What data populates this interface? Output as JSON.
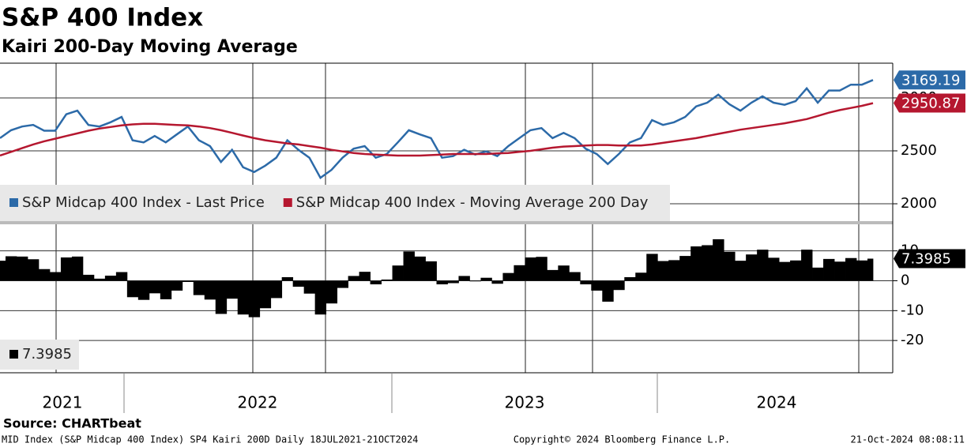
{
  "chart_data": [
    {
      "type": "line",
      "title": "S&P 400 Index",
      "subtitle": "Kairi 200-Day Moving Average",
      "ylim": [
        1836,
        3328
      ],
      "yticks": [
        2000,
        2500,
        3000
      ],
      "grid": true,
      "series": [
        {
          "name": "S&P Midcap 400 Index - Last Price",
          "color": "#2c6aa8",
          "values": [
            2620,
            2695,
            2730,
            2745,
            2690,
            2690,
            2845,
            2880,
            2745,
            2730,
            2770,
            2820,
            2600,
            2580,
            2640,
            2580,
            2655,
            2730,
            2600,
            2545,
            2395,
            2510,
            2345,
            2300,
            2360,
            2435,
            2600,
            2510,
            2435,
            2245,
            2320,
            2435,
            2520,
            2545,
            2435,
            2470,
            2580,
            2695,
            2655,
            2620,
            2435,
            2450,
            2510,
            2465,
            2495,
            2450,
            2545,
            2620,
            2695,
            2715,
            2620,
            2670,
            2620,
            2520,
            2470,
            2375,
            2470,
            2580,
            2620,
            2790,
            2745,
            2770,
            2820,
            2920,
            2955,
            3030,
            2940,
            2880,
            2955,
            3015,
            2955,
            2935,
            2970,
            3090,
            2955,
            3070,
            3070,
            3125,
            3125,
            3169.19
          ]
        },
        {
          "name": "S&P Midcap 400 Index - Moving Average 200 Day",
          "color": "#b5172f",
          "values": [
            2455,
            2490,
            2525,
            2560,
            2590,
            2615,
            2640,
            2665,
            2690,
            2710,
            2725,
            2740,
            2750,
            2755,
            2755,
            2750,
            2745,
            2740,
            2730,
            2715,
            2695,
            2670,
            2645,
            2620,
            2600,
            2585,
            2570,
            2560,
            2545,
            2530,
            2510,
            2495,
            2480,
            2470,
            2465,
            2460,
            2455,
            2455,
            2455,
            2460,
            2465,
            2470,
            2470,
            2470,
            2470,
            2475,
            2480,
            2490,
            2500,
            2515,
            2530,
            2540,
            2545,
            2550,
            2555,
            2555,
            2550,
            2550,
            2550,
            2560,
            2575,
            2590,
            2605,
            2620,
            2640,
            2660,
            2680,
            2700,
            2715,
            2730,
            2745,
            2760,
            2780,
            2800,
            2830,
            2860,
            2885,
            2905,
            2925,
            2950.87
          ]
        }
      ]
    },
    {
      "type": "bar",
      "ylim": [
        -30.8,
        18.9
      ],
      "yticks": [
        10,
        0,
        -10,
        -20
      ],
      "grid": true,
      "series": [
        {
          "color": "#000000",
          "values": [
            6.7,
            8.2,
            8.1,
            7.2,
            3.9,
            2.9,
            7.8,
            8.1,
            2.0,
            0.7,
            1.7,
            2.9,
            -5.5,
            -6.4,
            -4.2,
            -6.2,
            -3.3,
            -0.4,
            -4.8,
            -6.3,
            -11.1,
            -6.0,
            -11.3,
            -12.2,
            -9.2,
            -5.8,
            1.2,
            -2.0,
            -4.3,
            -11.3,
            -7.6,
            -2.4,
            1.6,
            3.0,
            -1.2,
            0.4,
            5.1,
            9.8,
            8.1,
            6.5,
            -1.2,
            -0.8,
            1.6,
            -0.2,
            1.0,
            -1.0,
            2.6,
            5.2,
            7.8,
            8.0,
            3.6,
            5.1,
            2.9,
            -1.2,
            -3.3,
            -7.0,
            -3.1,
            1.2,
            2.7,
            9.0,
            6.6,
            6.9,
            8.3,
            11.5,
            11.9,
            13.9,
            9.7,
            6.7,
            8.8,
            10.4,
            7.7,
            6.3,
            6.8,
            10.4,
            4.4,
            7.3,
            6.4,
            7.6,
            6.8,
            7.3985
          ]
        }
      ]
    }
  ],
  "x_axis": {
    "labels": [
      "2021",
      "2022",
      "2023",
      "2024"
    ]
  },
  "source": "Source: CHARTbeat",
  "footer": {
    "left": "MID Index (S&P Midcap 400 Index) SP4 Kairi 200D  Daily 18JUL2021-21OCT2024",
    "center": "Copyright© 2024 Bloomberg Finance L.P.",
    "right": "21-Oct-2024 08:08:11"
  }
}
